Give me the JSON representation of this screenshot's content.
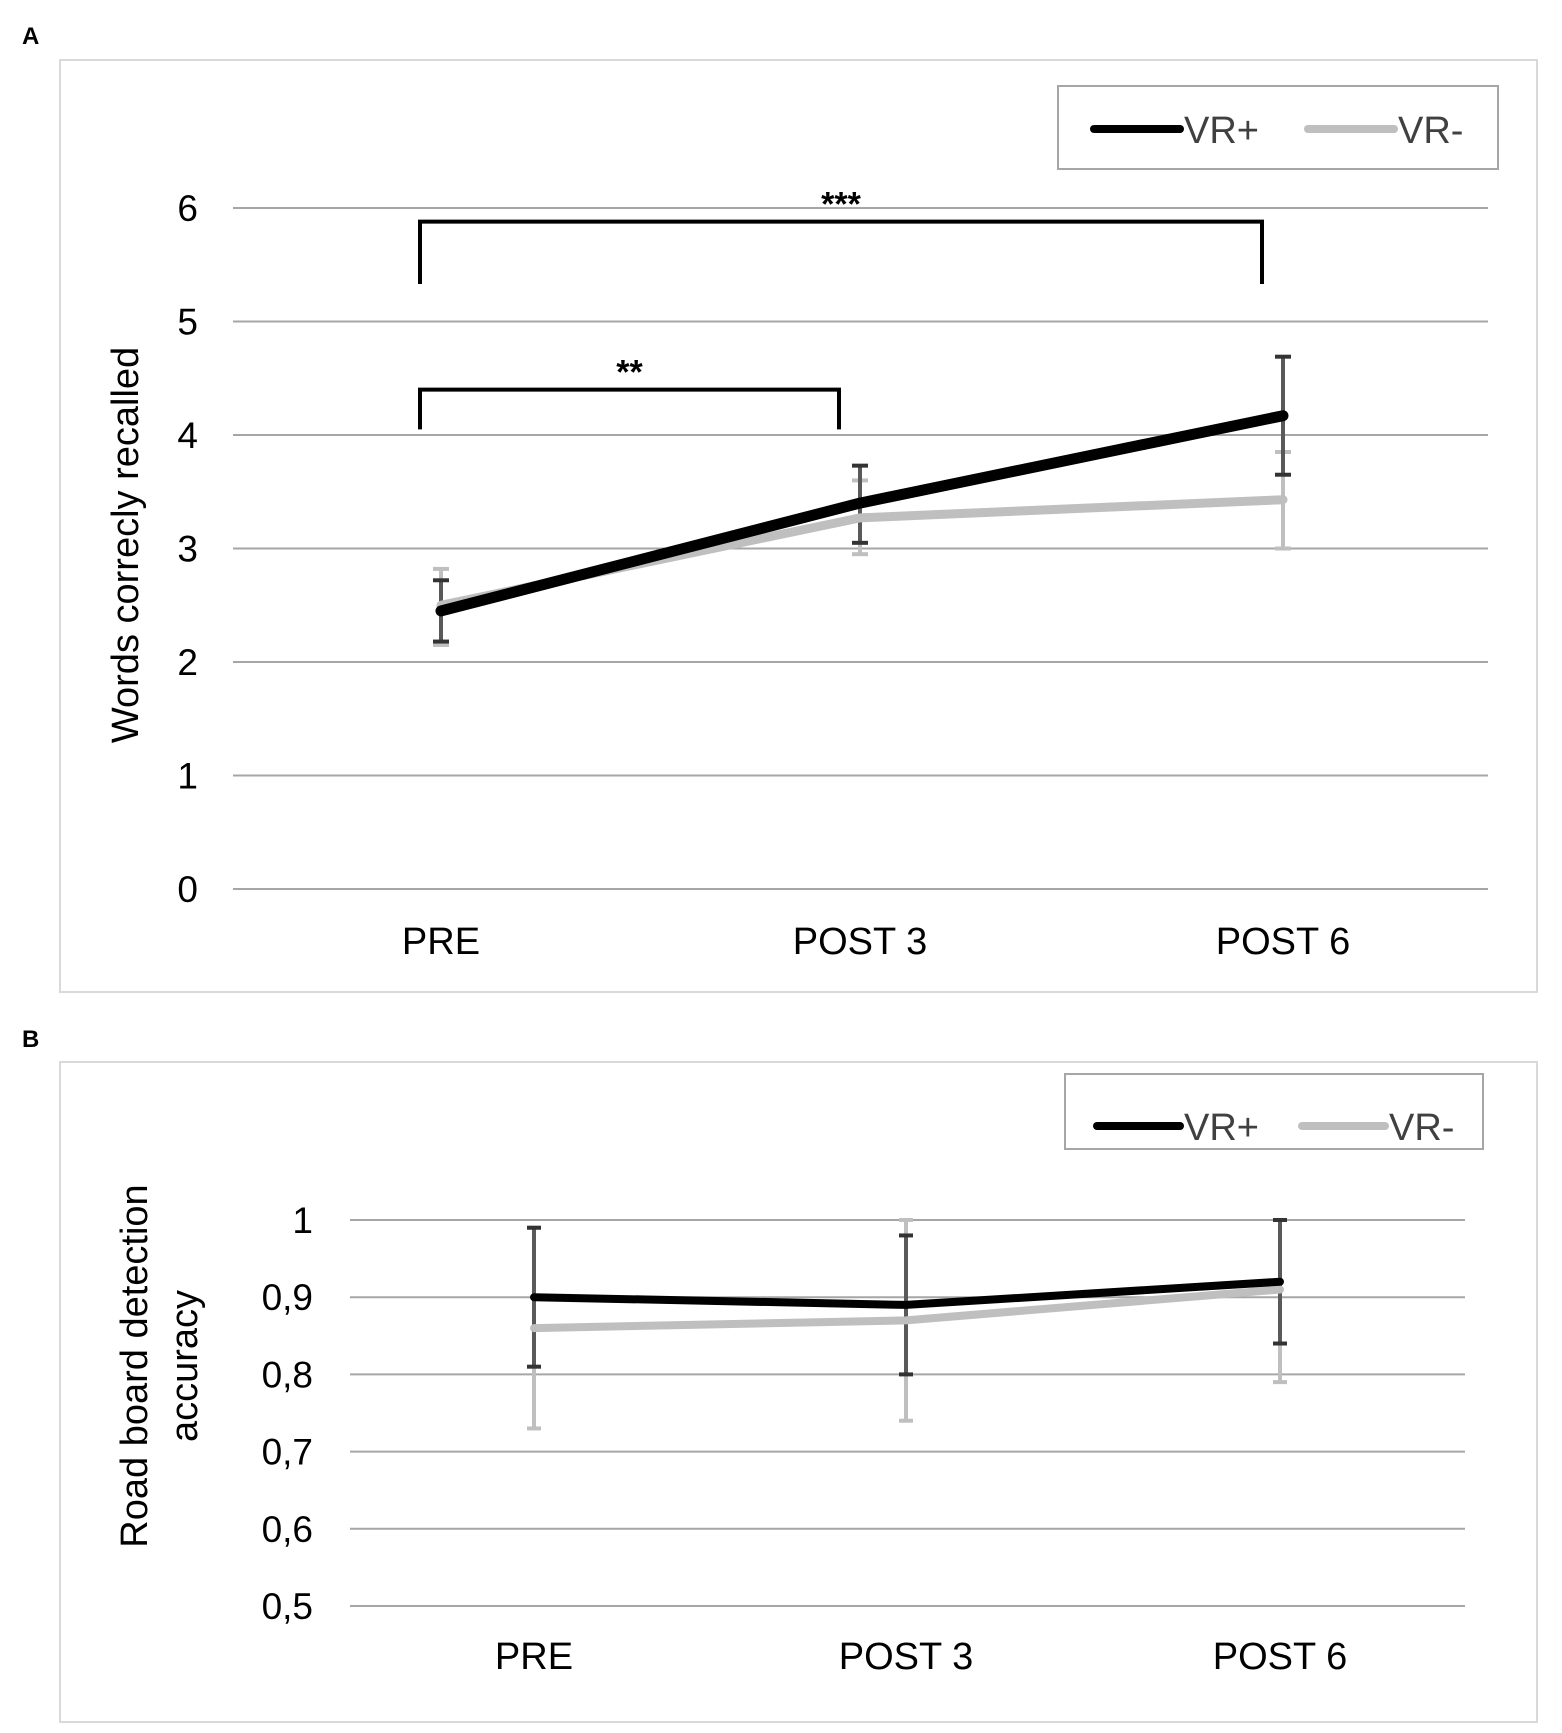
{
  "chart_data": [
    {
      "panel_label": "A",
      "type": "line",
      "categories": [
        "PRE",
        "POST 3",
        "POST 6"
      ],
      "ylabel": "Words correcly recalled",
      "xlabel": "",
      "ylim": [
        0,
        6
      ],
      "yticks": [
        0,
        1,
        2,
        3,
        4,
        5,
        6
      ],
      "ytick_labels": [
        "0",
        "1",
        "2",
        "3",
        "4",
        "5",
        "6"
      ],
      "grid": true,
      "legend": {
        "position": "top-right",
        "entries": [
          "VR+",
          "VR-"
        ]
      },
      "series": [
        {
          "name": "VR+",
          "color": "#000000",
          "values": [
            2.45,
            3.4,
            4.17
          ],
          "err_low": [
            2.18,
            3.05,
            3.65
          ],
          "err_high": [
            2.72,
            3.73,
            4.69
          ]
        },
        {
          "name": "VR-",
          "color": "#bfbfbf",
          "values": [
            2.5,
            3.27,
            3.43
          ],
          "err_low": [
            2.15,
            2.95,
            3.0
          ],
          "err_high": [
            2.82,
            3.6,
            3.85
          ]
        }
      ],
      "annotations": [
        {
          "from": "PRE",
          "to": "POST 3",
          "label": "**",
          "y_top": 4.4,
          "y_bottom": 4.05
        },
        {
          "from": "PRE",
          "to": "POST 6",
          "label": "***",
          "y_top": 5.88,
          "y_bottom": 5.33
        }
      ]
    },
    {
      "panel_label": "B",
      "type": "line",
      "categories": [
        "PRE",
        "POST 3",
        "POST 6"
      ],
      "ylabel": "Road board detection accuracy",
      "ylabel_lines": [
        "Road board detection",
        "accuracy"
      ],
      "xlabel": "",
      "ylim": [
        0.5,
        1.0
      ],
      "yticks": [
        0.5,
        0.6,
        0.7,
        0.8,
        0.9,
        1.0
      ],
      "ytick_labels": [
        "0,5",
        "0,6",
        "0,7",
        "0,8",
        "0,9",
        "1"
      ],
      "grid": true,
      "legend": {
        "position": "top-right",
        "entries": [
          "VR+",
          "VR-"
        ]
      },
      "series": [
        {
          "name": "VR+",
          "color": "#000000",
          "values": [
            0.9,
            0.89,
            0.92
          ],
          "err_low": [
            0.81,
            0.8,
            0.84
          ],
          "err_high": [
            0.99,
            0.98,
            1.0
          ]
        },
        {
          "name": "VR-",
          "color": "#bfbfbf",
          "values": [
            0.86,
            0.87,
            0.91
          ],
          "err_low": [
            0.73,
            0.74,
            0.79
          ],
          "err_high": [
            0.99,
            1.0,
            1.0
          ]
        }
      ],
      "annotations": []
    }
  ]
}
